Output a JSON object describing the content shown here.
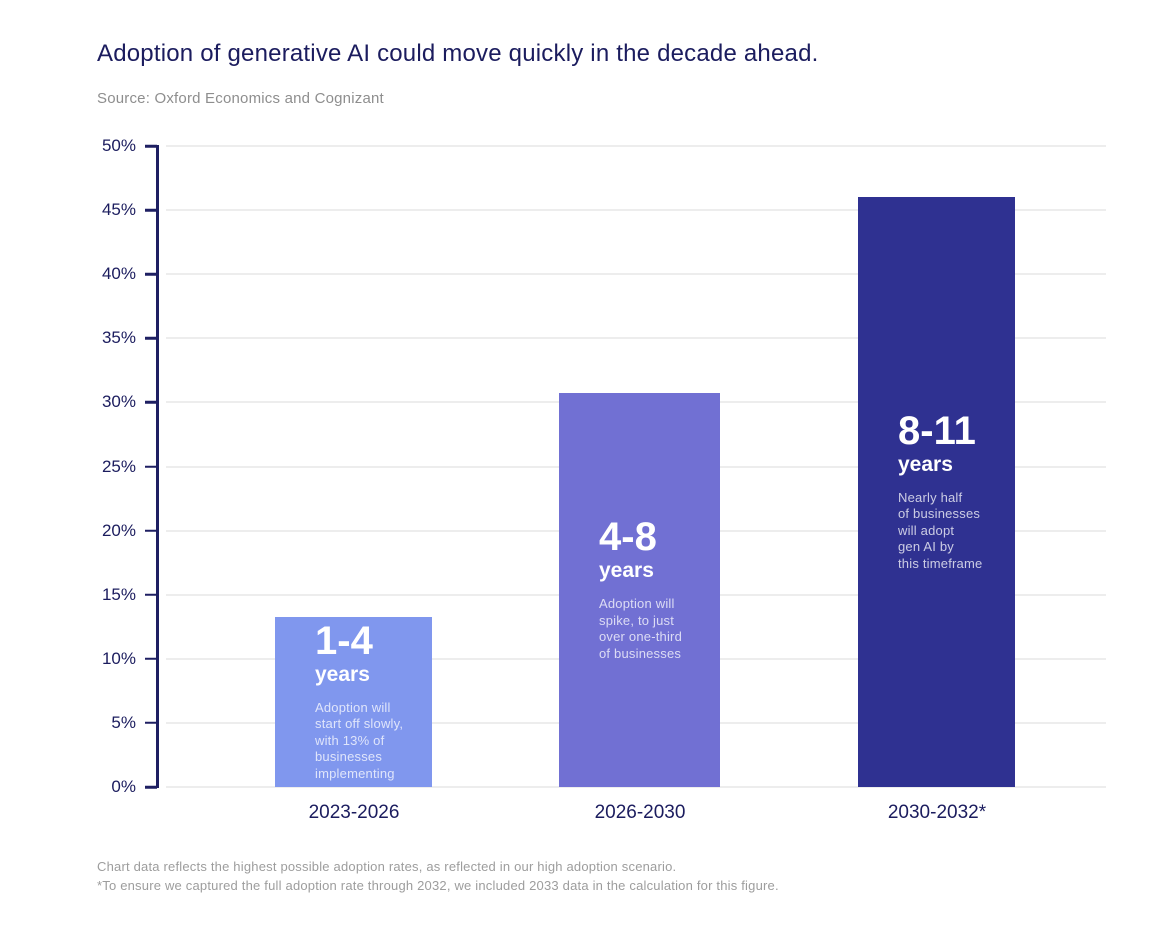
{
  "header": {
    "title": "Adoption of generative AI could move quickly  in the decade ahead.",
    "source": "Source: Oxford Economics and Cognizant"
  },
  "footnotes": {
    "line1": "Chart data reflects the highest possible adoption rates, as reflected in our high adoption scenario.",
    "line2": "*To ensure we captured the full adoption rate through 2032, we included 2033 data in the calculation for this figure."
  },
  "colors": {
    "bar_1": "#8097EE",
    "bar_2": "#7170D3",
    "bar_3": "#2F3191",
    "axis": "#1E1F62",
    "text_navy": "#1B1C5E",
    "gridline": "#EDEDED",
    "source_gray": "#8E8E8E",
    "footnote_gray": "#9D9D9D"
  },
  "chart_data": {
    "type": "bar",
    "title": "Adoption of generative AI could move quickly  in the decade ahead.",
    "subtitle": "Source: Oxford Economics and Cognizant",
    "categories": [
      "2023-2026",
      "2026-2030",
      "2030-2032*"
    ],
    "values": [
      13.3,
      30.7,
      46
    ],
    "xlabel": "",
    "ylabel": "",
    "ylim": [
      0,
      50
    ],
    "ytick_step": 5,
    "grid": true,
    "legend": "none",
    "yticks": [
      "50%",
      "45%",
      "40%",
      "35%",
      "30%",
      "25%",
      "20%",
      "15%",
      "10%",
      "5%",
      "0%"
    ],
    "bars": [
      {
        "category": "2023-2026",
        "value": 13.3,
        "color": "#8097EE",
        "headline": "1-4",
        "headline_sub": "years",
        "description": [
          "Adoption will",
          "start off slowly,",
          "with 13% of",
          "businesses",
          "implementing"
        ]
      },
      {
        "category": "2026-2030",
        "value": 30.7,
        "color": "#7170D3",
        "headline": "4-8",
        "headline_sub": "years",
        "description": [
          "Adoption will",
          "spike, to just",
          "over one-third",
          "of businesses"
        ]
      },
      {
        "category": "2030-2032*",
        "value": 46,
        "color": "#2F3191",
        "headline": "8-11",
        "headline_sub": "years",
        "description": [
          "Nearly half",
          "of businesses",
          "will adopt",
          "gen AI by",
          "this timeframe"
        ]
      }
    ]
  }
}
